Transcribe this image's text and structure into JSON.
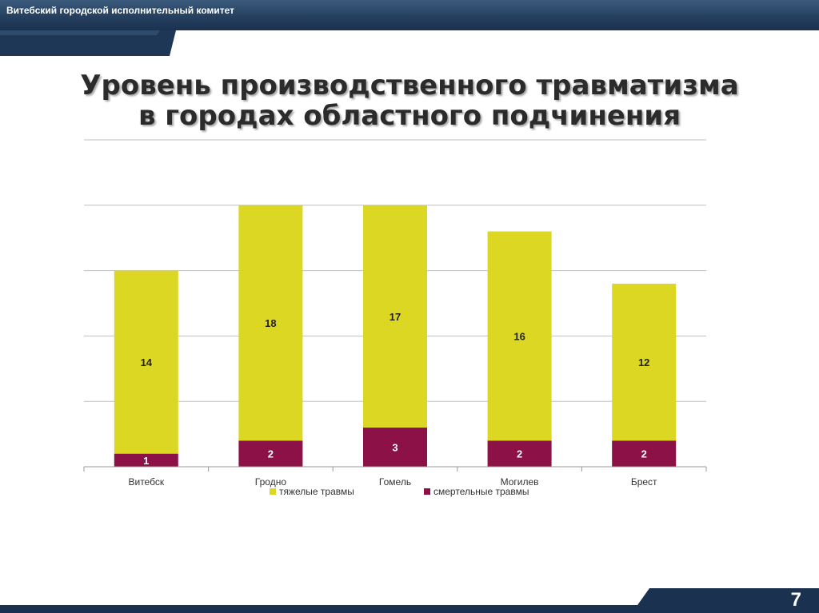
{
  "header": {
    "org_name": "Витебский городской исполнительный комитет"
  },
  "slide": {
    "title_line1": "Уровень производственного травматизма",
    "title_line2": "в городах областного подчинения",
    "page_number": "7"
  },
  "colors": {
    "header_bar": "#26405f",
    "series_severe": "#dcd722",
    "series_fatal": "#8b1146"
  },
  "chart_data": {
    "type": "bar",
    "stacked": true,
    "categories": [
      "Витебск",
      "Гродно",
      "Гомель",
      "Могилев",
      "Брест"
    ],
    "series": [
      {
        "name": "смертельные травмы",
        "values": [
          1,
          2,
          3,
          2,
          2
        ],
        "color": "#8b1146"
      },
      {
        "name": "тяжелые травмы",
        "values": [
          14,
          18,
          17,
          16,
          12
        ],
        "color": "#dcd722"
      }
    ],
    "ylim": [
      0,
      25
    ],
    "y_gridline_step": 5,
    "y_tick_labels_visible": false,
    "grid": true,
    "legend": "bottom"
  }
}
